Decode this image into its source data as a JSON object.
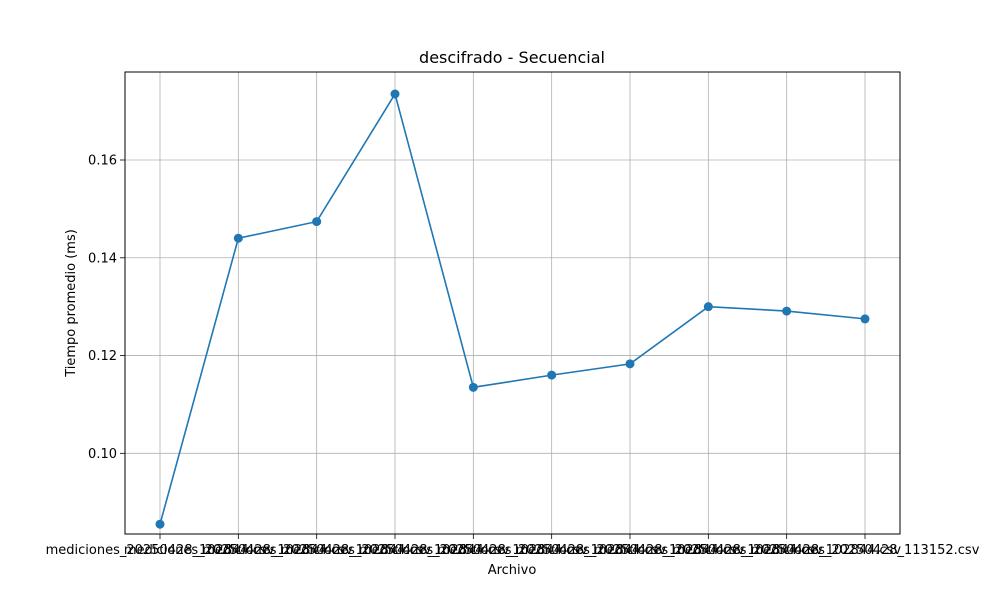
{
  "chart_data": {
    "type": "line",
    "title": "descifrado - Secuencial",
    "xlabel": "Archivo",
    "ylabel": "Tiempo promedio (ms)",
    "categories": [
      "mediciones_20250428_102844.csv",
      "mediciones_20250428_102844.csv",
      "mediciones_20250428_102844.csv",
      "mediciones_20250428_102844.csv",
      "mediciones_20250428_102844.csv",
      "mediciones_20250428_102844.csv",
      "mediciones_20250428_102844.csv",
      "mediciones_20250428_102844.csv",
      "mediciones_20250428_102844.csv",
      "mediciones_20250428_113152.csv"
    ],
    "series": [
      {
        "values": [
          0.0855,
          0.144,
          0.1474,
          0.1735,
          0.1135,
          0.116,
          0.1183,
          0.13,
          0.1291,
          0.1275
        ],
        "color": "#1f77b4"
      }
    ],
    "ylim": [
      0.0835,
      0.178
    ],
    "yticks": [
      0.1,
      0.12,
      0.14,
      0.16
    ],
    "ytick_labels": [
      "0.10",
      "0.12",
      "0.14",
      "0.16"
    ],
    "grid": true,
    "legend": "none"
  }
}
